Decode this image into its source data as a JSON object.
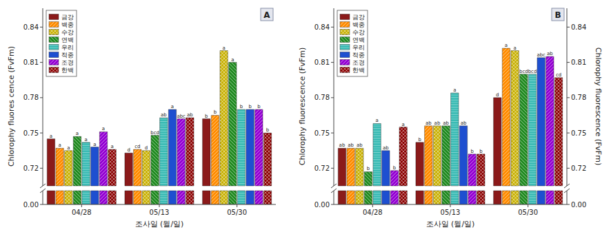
{
  "chart_data": [
    {
      "type": "bar",
      "title": "A",
      "xlabel": "조사일 (월/일)",
      "ylabel": "Chlorophy fluores cence (FvFm)",
      "categories": [
        "04/28",
        "05/13",
        "05/30"
      ],
      "series": [
        {
          "name": "금강",
          "color": "#8B1A1A",
          "values": [
            0.745,
            0.733,
            0.762
          ],
          "annotations": [
            "a",
            "d",
            "b"
          ]
        },
        {
          "name": "백중",
          "color": "#FF8C00",
          "values": [
            0.737,
            0.736,
            0.765
          ],
          "annotations": [
            "a",
            "cd",
            "b"
          ]
        },
        {
          "name": "수강",
          "color": "#C8B000",
          "values": [
            0.735,
            0.735,
            0.82
          ],
          "annotations": [
            "a",
            "d",
            "a"
          ]
        },
        {
          "name": "연백",
          "color": "#228B22",
          "values": [
            0.747,
            0.748,
            0.81
          ],
          "annotations": [
            "a",
            "bcd",
            "a"
          ]
        },
        {
          "name": "우리",
          "color": "#20B2AA",
          "values": [
            0.742,
            0.763,
            0.77
          ],
          "annotations": [
            "a",
            "ab",
            "b"
          ]
        },
        {
          "name": "적중",
          "color": "#1E4FD0",
          "values": [
            0.738,
            0.77,
            0.77
          ],
          "annotations": [
            "a",
            "a",
            "b"
          ]
        },
        {
          "name": "조경",
          "color": "#9400D3",
          "values": [
            0.751,
            0.762,
            0.77
          ],
          "annotations": [
            "a",
            "abc",
            "b"
          ]
        },
        {
          "name": "한백",
          "color": "#8B0000",
          "values": [
            0.736,
            0.763,
            0.75
          ],
          "annotations": [
            "a",
            "ab",
            "b"
          ]
        }
      ],
      "ylim": [
        0,
        0.856
      ],
      "y_break": [
        0.012,
        0.705
      ],
      "yticks": [
        {
          "value": 0,
          "label": "0.00"
        },
        0.72,
        0.75,
        0.78,
        0.81,
        0.84
      ],
      "grid": false,
      "legend": "upper left"
    },
    {
      "type": "bar",
      "title": "B",
      "xlabel": "조사일 (월/일)",
      "ylabel": "Chlorophy fluorescence (FvFm)",
      "y2label": "Chlorophy fluorescence (FvFm)",
      "categories": [
        "04/28",
        "05/13",
        "05/30"
      ],
      "series": [
        {
          "name": "금강",
          "color": "#8B1A1A",
          "values": [
            0.737,
            0.742,
            0.78
          ],
          "annotations": [
            "ab",
            "b",
            "d"
          ]
        },
        {
          "name": "백중",
          "color": "#FF8C00",
          "values": [
            0.737,
            0.756,
            0.822
          ],
          "annotations": [
            "ab",
            "ab",
            "a"
          ]
        },
        {
          "name": "수강",
          "color": "#C8B000",
          "values": [
            0.737,
            0.756,
            0.82
          ],
          "annotations": [
            "ab",
            "ab",
            "a"
          ]
        },
        {
          "name": "연백",
          "color": "#228B22",
          "values": [
            0.717,
            0.756,
            0.8
          ],
          "annotations": [
            "b",
            "ab",
            "bcd"
          ]
        },
        {
          "name": "우리",
          "color": "#20B2AA",
          "values": [
            0.758,
            0.784,
            0.8
          ],
          "annotations": [
            "a",
            "a",
            "bcd"
          ]
        },
        {
          "name": "적중",
          "color": "#1E4FD0",
          "values": [
            0.735,
            0.756,
            0.814
          ],
          "annotations": [
            "ab",
            "ab",
            "abc"
          ]
        },
        {
          "name": "조경",
          "color": "#9400D3",
          "values": [
            0.718,
            0.732,
            0.815
          ],
          "annotations": [
            "b",
            "b",
            "ab"
          ]
        },
        {
          "name": "한백",
          "color": "#8B0000",
          "values": [
            0.755,
            0.732,
            0.797
          ],
          "annotations": [
            "a",
            "b",
            "cd"
          ]
        }
      ],
      "ylim": [
        0,
        0.856
      ],
      "y_break": [
        0.012,
        0.705
      ],
      "yticks": [
        {
          "value": 0,
          "label": "0.00"
        },
        0.72,
        0.75,
        0.78,
        0.81,
        0.84
      ],
      "y2lim": [
        0,
        0.856
      ],
      "y2ticks": [
        {
          "value": 0,
          "label": "0.00"
        },
        0.72,
        0.75,
        0.78,
        0.81,
        0.84
      ],
      "grid": false,
      "legend": "upper left"
    }
  ]
}
